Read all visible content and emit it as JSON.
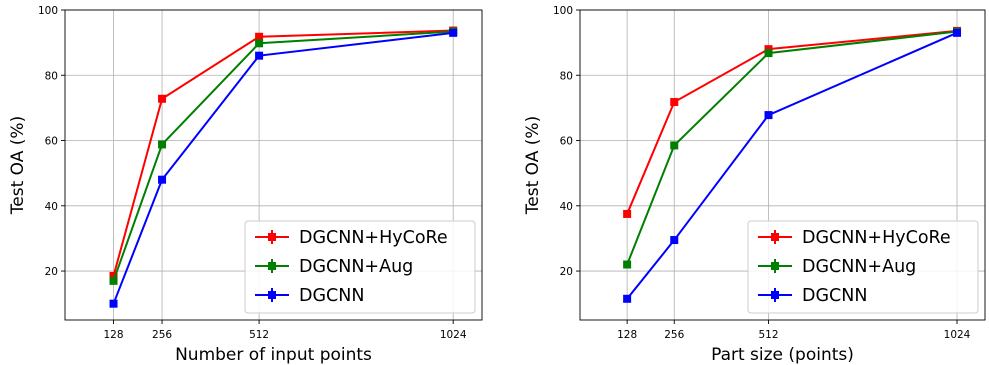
{
  "chart_data": [
    {
      "type": "line",
      "title": "",
      "xlabel": "Number of input points",
      "ylabel": "Test OA (%)",
      "x": [
        128,
        256,
        512,
        1024
      ],
      "xticks": [
        "128",
        "256",
        "512",
        "1024"
      ],
      "xlim": [
        0,
        1100
      ],
      "ylim": [
        5,
        100
      ],
      "yticks": [
        "20",
        "40",
        "60",
        "80",
        "100"
      ],
      "grid": true,
      "legend_position": "lower-right",
      "series": [
        {
          "name": "DGCNN+HyCoRe",
          "color": "#ff0000",
          "values": [
            18.5,
            72.8,
            91.8,
            93.7
          ]
        },
        {
          "name": "DGCNN+Aug",
          "color": "#008000",
          "values": [
            17.0,
            58.8,
            89.8,
            93.4
          ]
        },
        {
          "name": "DGCNN",
          "color": "#0000ff",
          "values": [
            10.0,
            48.0,
            86.0,
            93.0
          ]
        }
      ]
    },
    {
      "type": "line",
      "title": "",
      "xlabel": "Part size (points)",
      "ylabel": "Test OA (%)",
      "x": [
        128,
        256,
        512,
        1024
      ],
      "xticks": [
        "128",
        "256",
        "512",
        "1024"
      ],
      "xlim": [
        0,
        1100
      ],
      "ylim": [
        5,
        100
      ],
      "yticks": [
        "20",
        "40",
        "60",
        "80",
        "100"
      ],
      "grid": true,
      "legend_position": "lower-right",
      "series": [
        {
          "name": "DGCNN+HyCoRe",
          "color": "#ff0000",
          "values": [
            37.5,
            71.8,
            88.0,
            93.6
          ]
        },
        {
          "name": "DGCNN+Aug",
          "color": "#008000",
          "values": [
            22.0,
            58.5,
            86.8,
            93.4
          ]
        },
        {
          "name": "DGCNN",
          "color": "#0000ff",
          "values": [
            11.5,
            29.5,
            67.8,
            93.0
          ]
        }
      ]
    }
  ]
}
